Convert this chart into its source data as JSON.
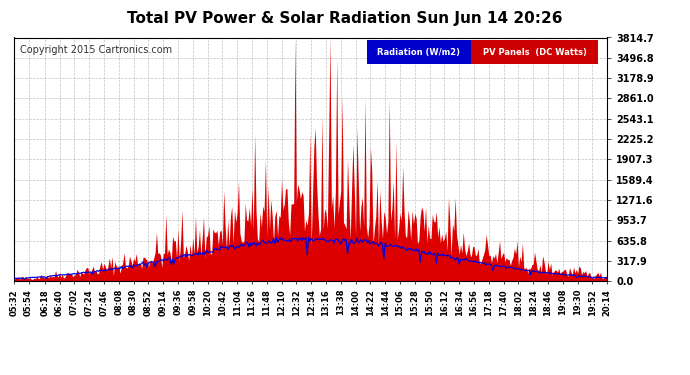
{
  "title": "Total PV Power & Solar Radiation Sun Jun 14 20:26",
  "copyright": "Copyright 2015 Cartronics.com",
  "y_ticks": [
    0.0,
    317.9,
    635.8,
    953.7,
    1271.6,
    1589.4,
    1907.3,
    2225.2,
    2543.1,
    2861.0,
    3178.9,
    3496.8,
    3814.7
  ],
  "y_max": 3814.7,
  "legend_radiation_label": "Radiation (W/m2)",
  "legend_pv_label": "PV Panels  (DC Watts)",
  "legend_radiation_bg": "#0000cc",
  "legend_pv_bg": "#cc0000",
  "background_color": "#ffffff",
  "grid_color": "#999999",
  "pv_color": "#dd0000",
  "radiation_color": "#0000dd",
  "title_fontsize": 11,
  "copyright_fontsize": 7,
  "tick_labels": [
    "05:32",
    "05:54",
    "06:18",
    "06:40",
    "07:02",
    "07:24",
    "07:46",
    "08:08",
    "08:30",
    "08:52",
    "09:14",
    "09:36",
    "09:58",
    "10:20",
    "10:42",
    "11:04",
    "11:26",
    "11:48",
    "12:10",
    "12:32",
    "12:54",
    "13:16",
    "13:38",
    "14:00",
    "14:22",
    "14:44",
    "15:06",
    "15:28",
    "15:50",
    "16:12",
    "16:34",
    "16:56",
    "17:18",
    "17:40",
    "18:02",
    "18:24",
    "18:46",
    "19:08",
    "19:30",
    "19:52",
    "20:14"
  ]
}
